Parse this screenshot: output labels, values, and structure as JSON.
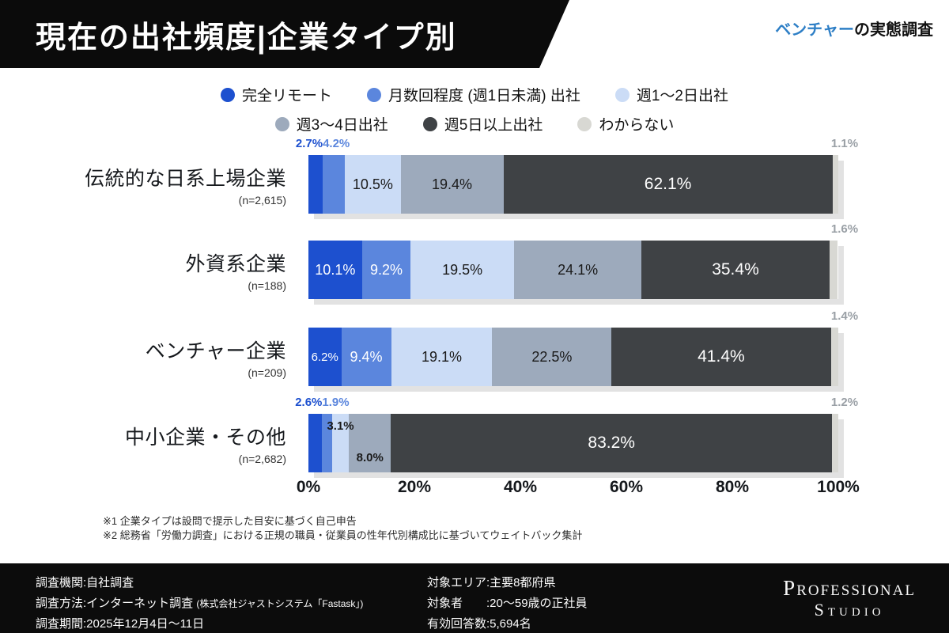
{
  "header": {
    "title": "現在の出社頻度|企業タイプ別",
    "tagline_highlight": "ベンチャー",
    "tagline_rest": "の実態調査",
    "accent_blue": "#2e7fc6"
  },
  "chart_data": {
    "type": "bar",
    "stacked": true,
    "orientation": "horizontal",
    "xlim": [
      0,
      100
    ],
    "x_ticks": [
      "0%",
      "20%",
      "40%",
      "60%",
      "80%",
      "100%"
    ],
    "legend_rows": [
      [
        0,
        1,
        2
      ],
      [
        3,
        4,
        5
      ]
    ],
    "series": [
      {
        "name": "完全リモート",
        "color": "#1d50cf",
        "text_color": "#ffffff"
      },
      {
        "name": "月数回程度 (週1日未満) 出社",
        "color": "#5b86dd",
        "text_color": "#ffffff"
      },
      {
        "name": "週1〜2日出社",
        "color": "#cbdcf6",
        "text_color": "#1a1a1a"
      },
      {
        "name": "週3〜4日出社",
        "color": "#9daabc",
        "text_color": "#1a1a1a"
      },
      {
        "name": "週5日以上出社",
        "color": "#3f4245",
        "text_color": "#ffffff"
      },
      {
        "name": "わからない",
        "color": "#d8d8d3",
        "text_color": "#9aa0a6"
      }
    ],
    "categories": [
      {
        "label": "伝統的な日系上場企業",
        "n": "(n=2,615)",
        "values": [
          2.7,
          4.2,
          10.5,
          19.4,
          62.1,
          1.1
        ],
        "labels": [
          "2.7%",
          "4.2%",
          "10.5%",
          "19.4%",
          "62.1%",
          "1.1%"
        ],
        "label_pos": [
          "above",
          "above",
          "inside",
          "inside",
          "inside",
          "above-right"
        ]
      },
      {
        "label": "外資系企業",
        "n": "(n=188)",
        "values": [
          10.1,
          9.2,
          19.5,
          24.1,
          35.4,
          1.6
        ],
        "labels": [
          "10.1%",
          "9.2%",
          "19.5%",
          "24.1%",
          "35.4%",
          "1.6%"
        ],
        "label_pos": [
          "inside",
          "inside",
          "inside",
          "inside",
          "inside",
          "above-right"
        ]
      },
      {
        "label": "ベンチャー企業",
        "n": "(n=209)",
        "values": [
          6.2,
          9.4,
          19.1,
          22.5,
          41.4,
          1.4
        ],
        "labels": [
          "6.2%",
          "9.4%",
          "19.1%",
          "22.5%",
          "41.4%",
          "1.4%"
        ],
        "label_pos": [
          "inside",
          "inside",
          "inside",
          "inside",
          "inside",
          "above-right"
        ]
      },
      {
        "label": "中小企業・その他",
        "n": "(n=2,682)",
        "values": [
          2.6,
          1.9,
          3.1,
          8.0,
          83.2,
          1.2
        ],
        "labels": [
          "2.6%",
          "1.9%",
          "3.1%",
          "8.0%",
          "83.2%",
          "1.2%"
        ],
        "label_pos": [
          "above",
          "above",
          "in-top",
          "in-bottom",
          "inside",
          "above-right"
        ]
      }
    ]
  },
  "footnotes": [
    "※1 企業タイプは設問で提示した目安に基づく自己申告",
    "※2 総務省「労働力調査」における正規の職員・従業員の性年代別構成比に基づいてウェイトバック集計"
  ],
  "footer": {
    "rows_left": [
      {
        "label": "調査機関:",
        "value": "自社調査"
      },
      {
        "label": "調査方法:",
        "value": "インターネット調査",
        "value_small": "(株式会社ジャストシステム「Fastask」)"
      },
      {
        "label": "調査期間:",
        "value": "2025年12月4日〜11日"
      }
    ],
    "rows_right": [
      {
        "label": "対象エリア:",
        "value": "主要8都府県"
      },
      {
        "label": "対象者　　:",
        "value": "20〜59歳の正社員"
      },
      {
        "label": "有効回答数:",
        "value": "5,694名"
      }
    ],
    "logo_line1": "Professional",
    "logo_line2": "Studio"
  }
}
